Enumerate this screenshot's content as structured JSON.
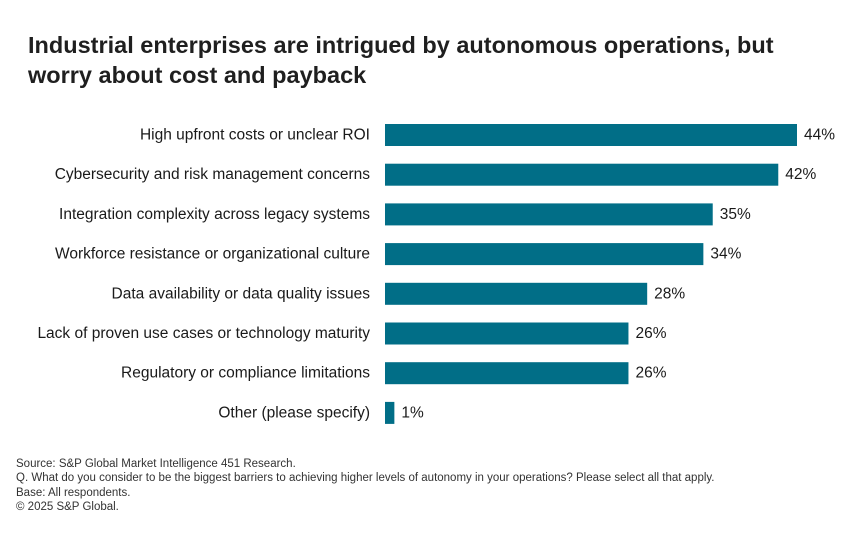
{
  "title": "Industrial enterprises are intrigued by autonomous operations, but worry about cost and payback",
  "footnotes": {
    "source": "Source: S&P Global Market Intelligence 451 Research.",
    "question": "Q. What do you consider to be the biggest barriers to achieving higher levels of autonomy in your operations? Please select all that apply.",
    "base": "Base: All respondents.",
    "copyright": "© 2025 S&P Global."
  },
  "colors": {
    "bar": "#016e87"
  },
  "chart_data": {
    "type": "bar",
    "orientation": "horizontal",
    "title": "Industrial enterprises are intrigued by autonomous operations, but worry about cost and payback",
    "xlabel": "",
    "ylabel": "",
    "xlim": [
      0,
      44
    ],
    "grid": false,
    "legend": "none",
    "value_suffix": "%",
    "categories": [
      "High upfront costs or unclear ROI",
      "Cybersecurity and risk management concerns",
      "Integration complexity across legacy systems",
      "Workforce resistance or organizational culture",
      "Data availability or data quality issues",
      "Lack of proven use cases or technology maturity",
      "Regulatory or compliance limitations",
      "Other (please specify)"
    ],
    "values": [
      44,
      42,
      35,
      34,
      28,
      26,
      26,
      1
    ]
  }
}
